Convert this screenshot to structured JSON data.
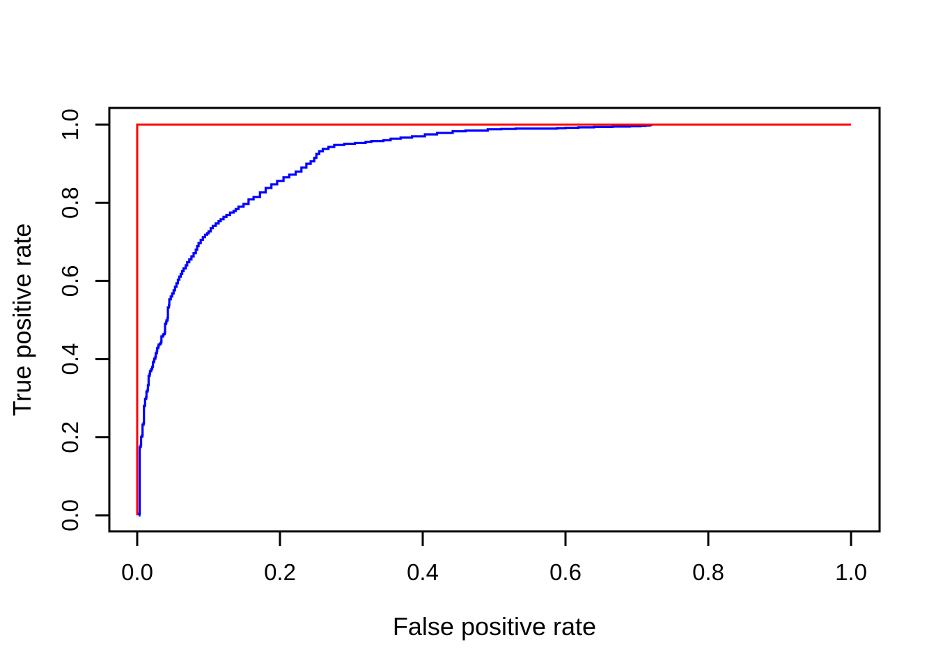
{
  "chart_data": {
    "type": "line",
    "title": "",
    "xlabel": "False positive rate",
    "ylabel": "True positive rate",
    "xlim": [
      0.0,
      1.0
    ],
    "ylim": [
      0.0,
      1.0
    ],
    "grid": false,
    "legend_position": "none",
    "x_ticks": [
      {
        "value": 0.0,
        "label": "0.0"
      },
      {
        "value": 0.2,
        "label": "0.2"
      },
      {
        "value": 0.4,
        "label": "0.4"
      },
      {
        "value": 0.6,
        "label": "0.6"
      },
      {
        "value": 0.8,
        "label": "0.8"
      },
      {
        "value": 1.0,
        "label": "1.0"
      }
    ],
    "y_ticks": [
      {
        "value": 0.0,
        "label": "0.0"
      },
      {
        "value": 0.2,
        "label": "0.2"
      },
      {
        "value": 0.4,
        "label": "0.4"
      },
      {
        "value": 0.6,
        "label": "0.6"
      },
      {
        "value": 0.8,
        "label": "0.8"
      },
      {
        "value": 1.0,
        "label": "1.0"
      }
    ],
    "series": [
      {
        "name": "roc-curve",
        "color": "#0000FF",
        "line_style": "step",
        "points": [
          [
            0.002,
            0.0
          ],
          [
            0.003,
            0.004
          ],
          [
            0.0035,
            0.175
          ],
          [
            0.005,
            0.18
          ],
          [
            0.0055,
            0.201
          ],
          [
            0.007,
            0.205
          ],
          [
            0.0075,
            0.232
          ],
          [
            0.009,
            0.236
          ],
          [
            0.0095,
            0.28
          ],
          [
            0.011,
            0.285
          ],
          [
            0.011,
            0.298
          ],
          [
            0.0125,
            0.302
          ],
          [
            0.013,
            0.317
          ],
          [
            0.0145,
            0.321
          ],
          [
            0.015,
            0.333
          ],
          [
            0.016,
            0.34
          ],
          [
            0.016,
            0.357
          ],
          [
            0.0175,
            0.362
          ],
          [
            0.018,
            0.369
          ],
          [
            0.0195,
            0.374
          ],
          [
            0.021,
            0.38
          ],
          [
            0.022,
            0.392
          ],
          [
            0.0235,
            0.396
          ],
          [
            0.024,
            0.401
          ],
          [
            0.0255,
            0.406
          ],
          [
            0.026,
            0.415
          ],
          [
            0.0275,
            0.42
          ],
          [
            0.028,
            0.428
          ],
          [
            0.0295,
            0.432
          ],
          [
            0.03,
            0.437
          ],
          [
            0.032,
            0.44
          ],
          [
            0.0335,
            0.444
          ],
          [
            0.034,
            0.458
          ],
          [
            0.036,
            0.461
          ],
          [
            0.037,
            0.464
          ],
          [
            0.0385,
            0.468
          ],
          [
            0.039,
            0.49
          ],
          [
            0.0405,
            0.494
          ],
          [
            0.041,
            0.499
          ],
          [
            0.0425,
            0.505
          ],
          [
            0.043,
            0.532
          ],
          [
            0.0445,
            0.538
          ],
          [
            0.045,
            0.553
          ],
          [
            0.047,
            0.56
          ],
          [
            0.049,
            0.568
          ],
          [
            0.051,
            0.576
          ],
          [
            0.053,
            0.585
          ],
          [
            0.055,
            0.594
          ],
          [
            0.057,
            0.603
          ],
          [
            0.059,
            0.611
          ],
          [
            0.061,
            0.618
          ],
          [
            0.063,
            0.625
          ],
          [
            0.065,
            0.632
          ],
          [
            0.068,
            0.64
          ],
          [
            0.07,
            0.648
          ],
          [
            0.073,
            0.655
          ],
          [
            0.076,
            0.663
          ],
          [
            0.079,
            0.671
          ],
          [
            0.082,
            0.68
          ],
          [
            0.084,
            0.689
          ],
          [
            0.086,
            0.697
          ],
          [
            0.089,
            0.705
          ],
          [
            0.092,
            0.712
          ],
          [
            0.095,
            0.718
          ],
          [
            0.098,
            0.722
          ],
          [
            0.1,
            0.727
          ],
          [
            0.103,
            0.735
          ],
          [
            0.106,
            0.741
          ],
          [
            0.11,
            0.747
          ],
          [
            0.114,
            0.753
          ],
          [
            0.117,
            0.758
          ],
          [
            0.121,
            0.764
          ],
          [
            0.125,
            0.769
          ],
          [
            0.13,
            0.775
          ],
          [
            0.135,
            0.779
          ],
          [
            0.138,
            0.784
          ],
          [
            0.142,
            0.79
          ],
          [
            0.149,
            0.797
          ],
          [
            0.156,
            0.809
          ],
          [
            0.163,
            0.815
          ],
          [
            0.172,
            0.827
          ],
          [
            0.18,
            0.838
          ],
          [
            0.188,
            0.847
          ],
          [
            0.196,
            0.856
          ],
          [
            0.205,
            0.865
          ],
          [
            0.213,
            0.872
          ],
          [
            0.222,
            0.88
          ],
          [
            0.23,
            0.89
          ],
          [
            0.237,
            0.9
          ],
          [
            0.243,
            0.906
          ],
          [
            0.248,
            0.915
          ],
          [
            0.251,
            0.925
          ],
          [
            0.255,
            0.932
          ],
          [
            0.26,
            0.938
          ],
          [
            0.268,
            0.943
          ],
          [
            0.276,
            0.948
          ],
          [
            0.29,
            0.951
          ],
          [
            0.305,
            0.953
          ],
          [
            0.32,
            0.956
          ],
          [
            0.328,
            0.958
          ],
          [
            0.345,
            0.96
          ],
          [
            0.355,
            0.964
          ],
          [
            0.369,
            0.967
          ],
          [
            0.385,
            0.97
          ],
          [
            0.403,
            0.975
          ],
          [
            0.42,
            0.979
          ],
          [
            0.442,
            0.983
          ],
          [
            0.46,
            0.985
          ],
          [
            0.491,
            0.988
          ],
          [
            0.51,
            0.989
          ],
          [
            0.53,
            0.99
          ],
          [
            0.56,
            0.99
          ],
          [
            0.588,
            0.991
          ],
          [
            0.6,
            0.992
          ],
          [
            0.618,
            0.993
          ],
          [
            0.64,
            0.994
          ],
          [
            0.666,
            0.995
          ],
          [
            0.69,
            0.996
          ],
          [
            0.705,
            0.997
          ],
          [
            0.712,
            0.998
          ],
          [
            0.718,
            0.999
          ],
          [
            0.72,
            1.0
          ]
        ]
      },
      {
        "name": "ideal-reference-line",
        "color": "#FF0000",
        "line_style": "straight",
        "points": [
          [
            0.0,
            0.0
          ],
          [
            0.0,
            1.0
          ],
          [
            1.0,
            1.0
          ]
        ]
      }
    ]
  },
  "colors": {
    "roc_curve": "#0000FF",
    "reference_line": "#FF0000",
    "axis": "#000000",
    "background": "#FFFFFF"
  }
}
